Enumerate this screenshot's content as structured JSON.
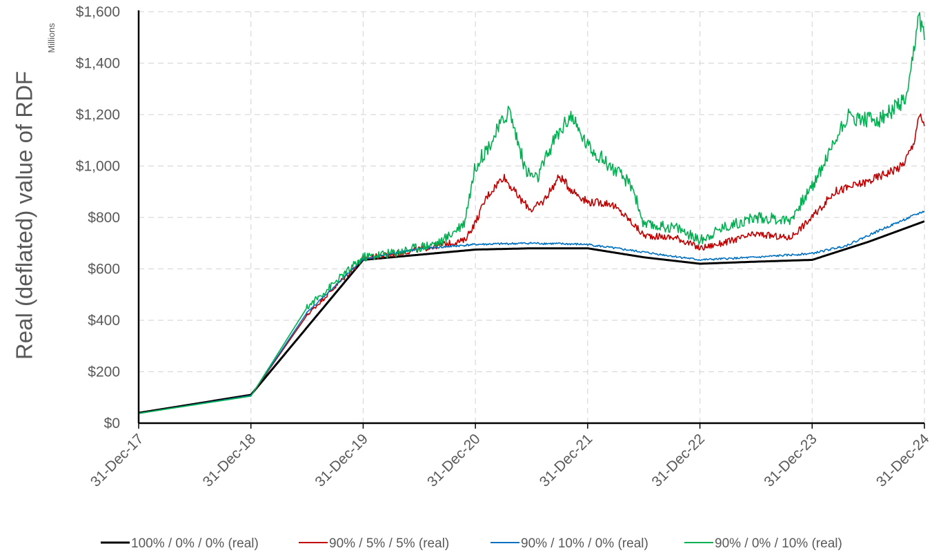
{
  "chart_data": {
    "type": "line",
    "ylabel": "Real (deflated) value of RDF",
    "y_unit_label": "Millions",
    "ylim": [
      0,
      1600
    ],
    "y_ticks": [
      0,
      200,
      400,
      600,
      800,
      1000,
      1200,
      1400,
      1600
    ],
    "y_tick_labels": [
      "$0",
      "$200",
      "$400",
      "$600",
      "$800",
      "$1,000",
      "$1,200",
      "$1,400",
      "$1,600"
    ],
    "x_ticks": [
      "31-Dec-17",
      "31-Dec-18",
      "31-Dec-19",
      "31-Dec-20",
      "31-Dec-21",
      "31-Dec-22",
      "31-Dec-23",
      "31-Dec-24"
    ],
    "grid": true,
    "legend_position": "bottom",
    "series": [
      {
        "name": "100% / 0% / 0% (real)",
        "color": "#000000",
        "points": [
          [
            0,
            40
          ],
          [
            1,
            110
          ],
          [
            2,
            635
          ],
          [
            2.5,
            655
          ],
          [
            3,
            675
          ],
          [
            3.5,
            680
          ],
          [
            4,
            680
          ],
          [
            4.5,
            645
          ],
          [
            5,
            620
          ],
          [
            5.5,
            628
          ],
          [
            6,
            635
          ],
          [
            6.5,
            705
          ],
          [
            7,
            785
          ]
        ]
      },
      {
        "name": "90% / 5% / 5% (real)",
        "color": "#c00000",
        "points": [
          [
            0,
            38
          ],
          [
            1,
            107
          ],
          [
            1.5,
            420
          ],
          [
            2,
            640
          ],
          [
            2.3,
            660
          ],
          [
            2.6,
            685
          ],
          [
            2.9,
            710
          ],
          [
            3,
            780
          ],
          [
            3.1,
            880
          ],
          [
            3.25,
            960
          ],
          [
            3.4,
            870
          ],
          [
            3.5,
            830
          ],
          [
            3.6,
            860
          ],
          [
            3.75,
            960
          ],
          [
            3.85,
            910
          ],
          [
            4,
            860
          ],
          [
            4.2,
            855
          ],
          [
            4.35,
            800
          ],
          [
            4.5,
            730
          ],
          [
            4.8,
            720
          ],
          [
            5,
            680
          ],
          [
            5.2,
            700
          ],
          [
            5.5,
            735
          ],
          [
            5.8,
            720
          ],
          [
            6,
            800
          ],
          [
            6.2,
            900
          ],
          [
            6.5,
            940
          ],
          [
            6.8,
            1000
          ],
          [
            6.9,
            1080
          ],
          [
            6.95,
            1200
          ],
          [
            7,
            1155
          ]
        ]
      },
      {
        "name": "90% / 10% / 0% (real)",
        "color": "#0070c0",
        "points": [
          [
            0,
            38
          ],
          [
            1,
            107
          ],
          [
            1.5,
            430
          ],
          [
            2,
            638
          ],
          [
            2.5,
            678
          ],
          [
            3,
            695
          ],
          [
            3.5,
            700
          ],
          [
            4,
            695
          ],
          [
            4.5,
            665
          ],
          [
            5,
            635
          ],
          [
            5.5,
            645
          ],
          [
            6,
            660
          ],
          [
            6.3,
            690
          ],
          [
            6.6,
            750
          ],
          [
            7,
            825
          ]
        ]
      },
      {
        "name": "90% / 0% / 10% (real)",
        "color": "#00b050",
        "points": [
          [
            0,
            38
          ],
          [
            1,
            105
          ],
          [
            1.5,
            450
          ],
          [
            2,
            645
          ],
          [
            2.3,
            665
          ],
          [
            2.7,
            705
          ],
          [
            2.9,
            780
          ],
          [
            3,
            1000
          ],
          [
            3.15,
            1100
          ],
          [
            3.3,
            1220
          ],
          [
            3.45,
            980
          ],
          [
            3.55,
            950
          ],
          [
            3.7,
            1100
          ],
          [
            3.85,
            1200
          ],
          [
            3.9,
            1150
          ],
          [
            4,
            1080
          ],
          [
            4.2,
            1000
          ],
          [
            4.4,
            920
          ],
          [
            4.5,
            770
          ],
          [
            4.8,
            760
          ],
          [
            5,
            710
          ],
          [
            5.2,
            760
          ],
          [
            5.5,
            800
          ],
          [
            5.8,
            790
          ],
          [
            6,
            920
          ],
          [
            6.15,
            1050
          ],
          [
            6.3,
            1190
          ],
          [
            6.6,
            1180
          ],
          [
            6.85,
            1260
          ],
          [
            6.95,
            1590
          ],
          [
            7,
            1490
          ]
        ]
      }
    ]
  }
}
